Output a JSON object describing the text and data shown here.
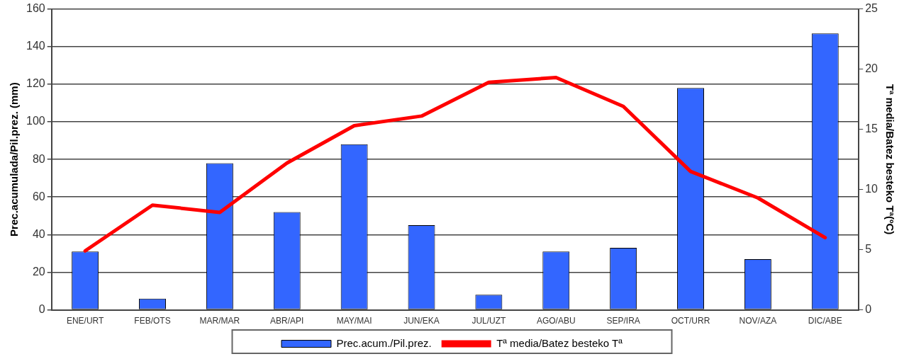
{
  "chart_data": {
    "type": "bar",
    "ylabel": "Prec.acumulada/Pil.prez. (mm)",
    "y2label": "Tª media/Batez besteko Tª(ºC)",
    "categories": [
      "ENE/URT",
      "FEB/OTS",
      "MAR/MAR",
      "ABR/API",
      "MAY/MAI",
      "JUN/EKA",
      "JUL/UZT",
      "AGO/ABU",
      "SEP/IRA",
      "OCT/URR",
      "NOV/AZA",
      "DIC/ABE"
    ],
    "series": [
      {
        "name": "Prec.acum./Pil.prez.",
        "color": "#3366ff",
        "values": [
          31,
          6,
          78,
          52,
          88,
          45,
          8,
          31,
          33,
          118,
          27,
          147
        ]
      },
      {
        "name": "Tª media/Batez besteko Tª",
        "type": "line",
        "axis": "y2",
        "color": "#ff0000",
        "values": [
          4.9,
          8.7,
          8.1,
          12.2,
          15.3,
          16.1,
          18.9,
          19.3,
          16.9,
          11.5,
          9.3,
          6.0
        ]
      }
    ],
    "ylim": [
      0,
      160
    ],
    "yticks": [
      0,
      20,
      40,
      60,
      80,
      100,
      120,
      140,
      160
    ],
    "y2lim": [
      0,
      25
    ],
    "y2ticks": [
      0,
      5,
      10,
      15,
      20,
      25
    ],
    "grid": "y",
    "legend": "bottom",
    "marker": "none"
  }
}
